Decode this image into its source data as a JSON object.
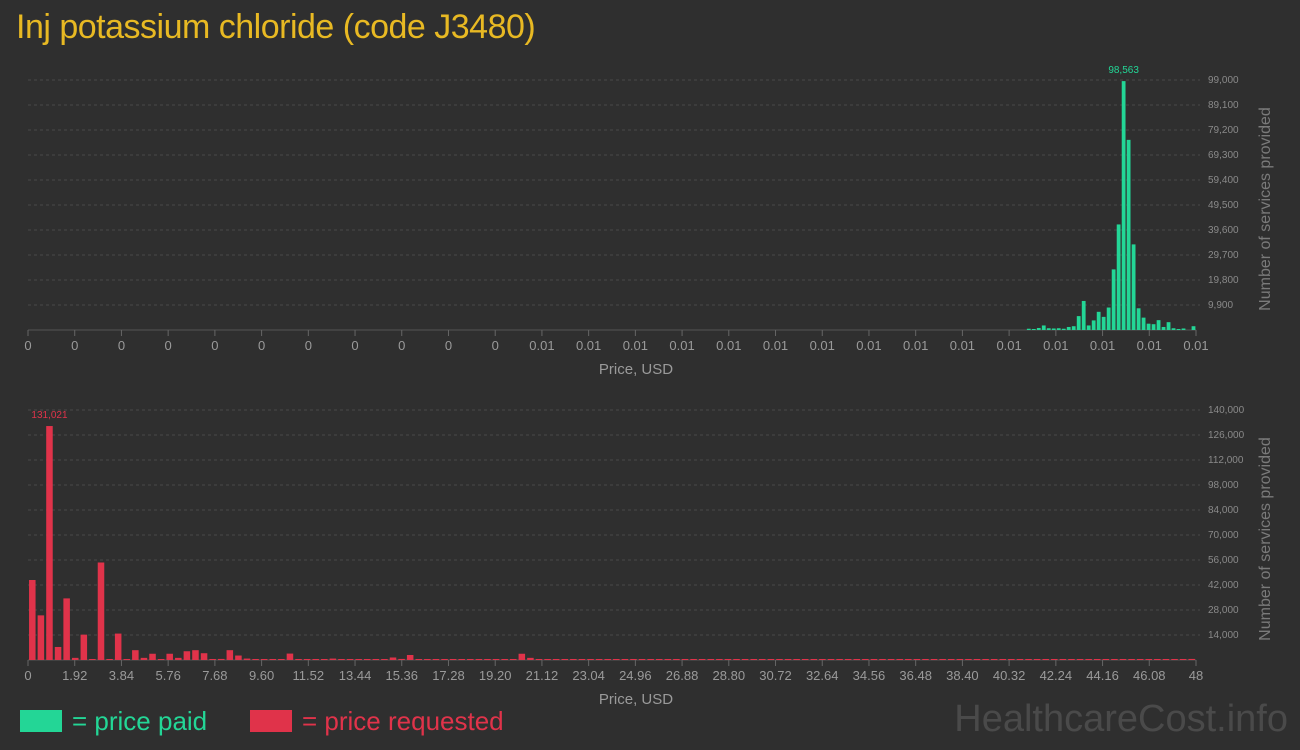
{
  "title": "Inj potassium chloride (code J3480)",
  "legend": {
    "paid": "= price paid",
    "requested": "= price requested"
  },
  "watermark": "HealthcareCost.info",
  "colors": {
    "paid": "#23d696",
    "requested": "#e0334a",
    "title": "#e8b923"
  },
  "chart_data": [
    {
      "type": "bar",
      "series_name": "price paid",
      "xlabel": "Price, USD",
      "ylabel": "Number of services provided",
      "ylim": [
        0,
        99000
      ],
      "y_ticks": [
        "9,900",
        "19,800",
        "29,700",
        "39,600",
        "49,500",
        "59,400",
        "69,300",
        "79,200",
        "89,100",
        "99,000"
      ],
      "x_ticks": [
        "0",
        "0",
        "0",
        "0",
        "0",
        "0",
        "0",
        "0",
        "0",
        "0",
        "0",
        "0.01",
        "0.01",
        "0.01",
        "0.01",
        "0.01",
        "0.01",
        "0.01",
        "0.01",
        "0.01",
        "0.01",
        "0.01",
        "0.01",
        "0.01",
        "0.01",
        "0.01"
      ],
      "peak_label": "98,563",
      "values": [
        0,
        0,
        0,
        0,
        0,
        0,
        0,
        0,
        0,
        0,
        0,
        0,
        0,
        0,
        0,
        0,
        0,
        0,
        0,
        0,
        0,
        0,
        0,
        0,
        0,
        0,
        0,
        0,
        0,
        0,
        0,
        0,
        0,
        0,
        0,
        0,
        0,
        0,
        0,
        0,
        0,
        0,
        0,
        0,
        0,
        0,
        0,
        0,
        0,
        0,
        0,
        0,
        0,
        0,
        0,
        0,
        0,
        0,
        0,
        0,
        0,
        0,
        0,
        0,
        0,
        0,
        0,
        0,
        0,
        0,
        0,
        0,
        0,
        0,
        0,
        0,
        0,
        0,
        0,
        0,
        0,
        0,
        0,
        0,
        0,
        0,
        0,
        0,
        0,
        0,
        0,
        0,
        0,
        0,
        0,
        0,
        0,
        0,
        0,
        0,
        0,
        0,
        0,
        0,
        0,
        0,
        0,
        0,
        0,
        0,
        0,
        0,
        0,
        0,
        0,
        0,
        0,
        0,
        0,
        0,
        0,
        0,
        0,
        0,
        0,
        0,
        0,
        0,
        0,
        0,
        0,
        0,
        0,
        0,
        0,
        0,
        0,
        0,
        0,
        0,
        0,
        0,
        0,
        0,
        0,
        0,
        0,
        0,
        0,
        0,
        0,
        0,
        0,
        0,
        0,
        0,
        0,
        0,
        0,
        0,
        0,
        0,
        0,
        0,
        0,
        0,
        0,
        0,
        0,
        0,
        0,
        0,
        0,
        0,
        0,
        0,
        0,
        0,
        0,
        0,
        0,
        0,
        0,
        0,
        0,
        0,
        0,
        0,
        0,
        0,
        0,
        0,
        0,
        0,
        0,
        0,
        0,
        0,
        0,
        0,
        500,
        300,
        800,
        1800,
        700,
        600,
        700,
        500,
        1200,
        1500,
        5500,
        11500,
        1800,
        3800,
        7200,
        5200,
        8900,
        24000,
        41800,
        98563,
        75300,
        33900,
        8600,
        4900,
        2500,
        2300,
        3900,
        1200,
        3100,
        700,
        400,
        600,
        0,
        1500
      ]
    },
    {
      "type": "bar",
      "series_name": "price requested",
      "xlabel": "Price, USD",
      "ylabel": "Number of services provided",
      "ylim": [
        0,
        140000
      ],
      "y_ticks": [
        "14,000",
        "28,000",
        "42,000",
        "56,000",
        "70,000",
        "84,000",
        "98,000",
        "112,000",
        "126,000",
        "140,000"
      ],
      "x_ticks": [
        "0",
        "1.92",
        "3.84",
        "5.76",
        "7.68",
        "9.60",
        "11.52",
        "13.44",
        "15.36",
        "17.28",
        "19.20",
        "21.12",
        "23.04",
        "24.96",
        "26.88",
        "28.80",
        "30.72",
        "32.64",
        "34.56",
        "36.48",
        "38.40",
        "40.32",
        "42.24",
        "44.16",
        "46.08",
        "48"
      ],
      "peak_label": "131,021",
      "values": [
        44800,
        25000,
        131021,
        7300,
        34500,
        1200,
        14200,
        200,
        54600,
        500,
        14800,
        300,
        5500,
        1200,
        3500,
        500,
        3500,
        1200,
        4900,
        5500,
        3800,
        500,
        600,
        5500,
        2500,
        800,
        300,
        500,
        100,
        200,
        3600,
        100,
        100,
        100,
        200,
        800,
        100,
        100,
        100,
        100,
        200,
        100,
        1400,
        600,
        2800,
        100,
        100,
        200,
        300,
        100,
        100,
        100,
        100,
        100,
        100,
        300,
        100,
        3500,
        1200,
        300,
        100,
        100,
        200,
        100,
        100,
        200,
        100,
        100,
        100,
        100,
        100,
        100,
        200,
        100,
        100,
        100,
        100,
        100,
        100,
        100,
        100,
        100,
        100,
        100,
        100,
        100,
        100,
        200,
        100,
        100,
        100,
        100,
        100,
        100,
        100,
        100,
        100,
        100,
        100,
        100,
        100,
        100,
        100,
        100,
        100,
        100,
        100,
        100,
        100,
        100,
        100,
        100,
        100,
        100,
        100,
        100,
        100,
        100,
        100,
        100,
        100,
        100,
        500,
        100,
        100,
        100,
        100,
        100,
        100,
        100,
        100,
        100,
        100,
        100,
        100,
        600
      ]
    }
  ]
}
